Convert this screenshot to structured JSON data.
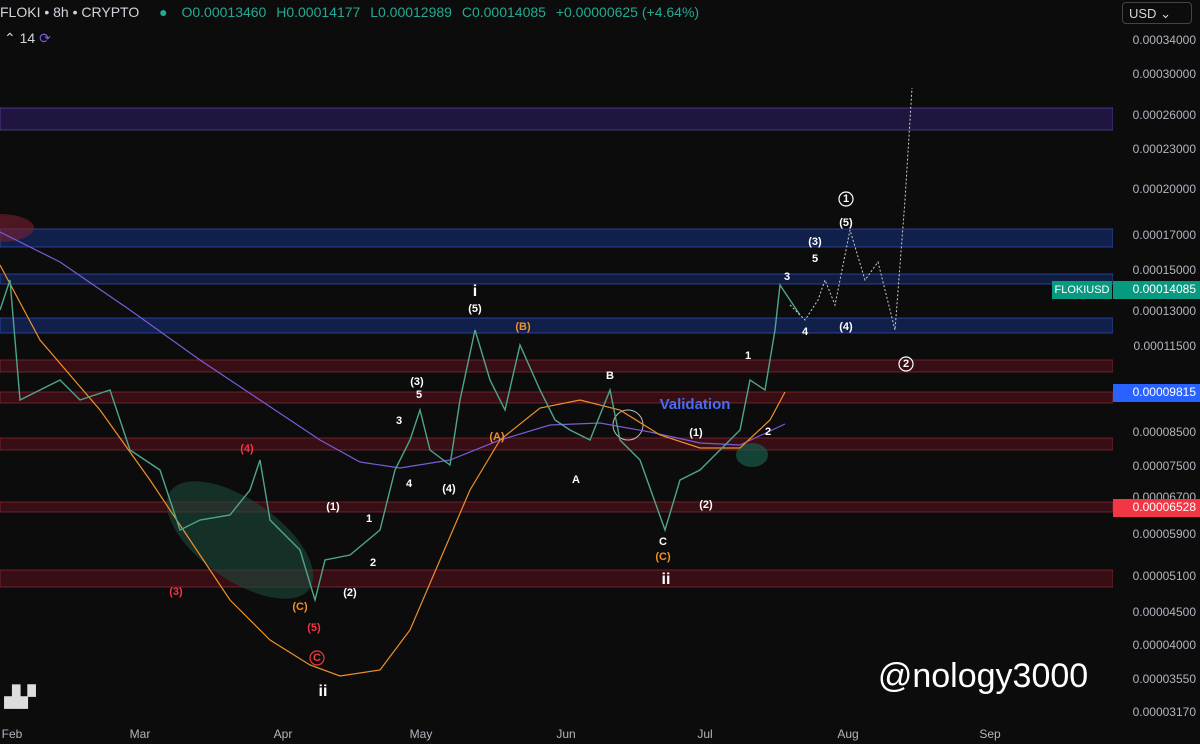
{
  "header": {
    "symbol": "FLOKI • 8h • CRYPTO",
    "open": "O0.00013460",
    "high": "H0.00014177",
    "low": "L0.00012989",
    "close": "C0.00014085",
    "change": "+0.00000625 (+4.64%)",
    "interval_value": "14",
    "currency": "USD"
  },
  "price_axis": [
    "0.00034000",
    "0.00030000",
    "0.00026000",
    "0.00023000",
    "0.00020000",
    "0.00017000",
    "0.00015000",
    "0.00013000",
    "0.00011500",
    "0.00008500",
    "0.00007500",
    "0.00006700",
    "0.00005900",
    "0.00005100",
    "0.00004500",
    "0.00004000",
    "0.00003550",
    "0.00003170"
  ],
  "price_tags": [
    {
      "symbol": "FLOKIUSD",
      "price": "0.00014085"
    },
    {
      "price": "0.00009815"
    },
    {
      "price": "0.00006528"
    }
  ],
  "time_axis": [
    "Feb",
    "Mar",
    "Apr",
    "May",
    "Jun",
    "Jul",
    "Aug",
    "Sep"
  ],
  "wave_labels": [
    "(4)",
    "(3)",
    "(C)",
    "(5)",
    "C",
    "ii",
    "(1)",
    "1",
    "2",
    "(2)",
    "3",
    "(3)",
    "5",
    "4",
    "(4)",
    "i",
    "(5)",
    "(B)",
    "(A)",
    "B",
    "A",
    "C",
    "(C)",
    "ii",
    "(1)",
    "(2)",
    "2",
    "1",
    "Validation",
    "3",
    "4",
    "5",
    "(3)",
    "(4)",
    "(5)",
    "1",
    "2"
  ],
  "watermark": "@nology3000"
}
